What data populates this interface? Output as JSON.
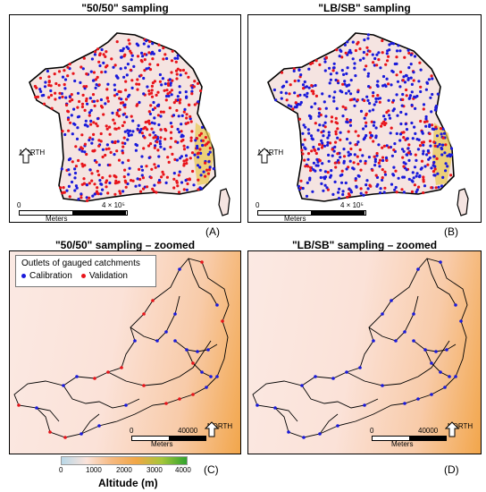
{
  "panels": {
    "A": {
      "title": "\"50/50\" sampling",
      "label": "(A)",
      "north": "NORTH",
      "scale_left": "0",
      "scale_right": "4 × 10⁵",
      "scale_unit": "Meters"
    },
    "B": {
      "title": "\"LB/SB\" sampling",
      "label": "(B)",
      "north": "NORTH",
      "scale_left": "0",
      "scale_right": "4 × 10⁵",
      "scale_unit": "Meters"
    },
    "C": {
      "title": "\"50/50\" sampling – zoomed",
      "label": "(C)",
      "north": "NORTH",
      "scale_left": "0",
      "scale_right": "40000",
      "scale_unit": "Meters"
    },
    "D": {
      "title": "\"LB/SB\" sampling – zoomed",
      "label": "(D)",
      "north": "NORTH",
      "scale_left": "0",
      "scale_right": "40000",
      "scale_unit": "Meters"
    }
  },
  "legend": {
    "title": "Outlets of gauged catchments",
    "items": [
      {
        "label": "Calibration",
        "color": "#1a1adb"
      },
      {
        "label": "Validation",
        "color": "#e8141b"
      }
    ]
  },
  "altitude_legend": {
    "label": "Altitude (m)",
    "ticks": [
      "0",
      "1000",
      "2000",
      "3000",
      "4000"
    ],
    "colors": [
      "#b9d8e8",
      "#fbe3da",
      "#f6b980",
      "#f1a645",
      "#a6c63a",
      "#2fa32e"
    ]
  },
  "colors": {
    "calibration": "#1a1adb",
    "validation": "#e8141b"
  }
}
